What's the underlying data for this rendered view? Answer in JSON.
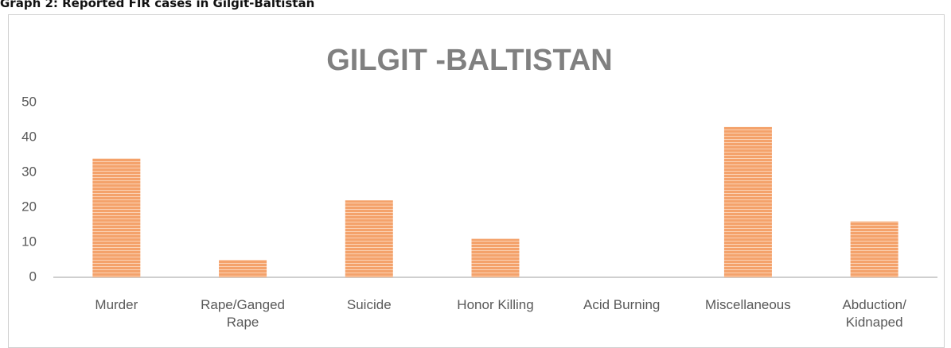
{
  "heading": "Graph 2: Reported FIR cases in Gilgit-Baltistan",
  "chart_data": {
    "type": "bar",
    "title": "GILGIT -BALTISTAN",
    "categories": [
      "Murder",
      "Rape/Ganged Rape",
      "Suicide",
      "Honor Killing",
      "Acid Burning",
      "Miscellaneous",
      "Abduction/ Kidnaped"
    ],
    "values": [
      34,
      5,
      22,
      11,
      0,
      43,
      16
    ],
    "color": "#f4a26b",
    "ylim": [
      0,
      50
    ],
    "yticks": [
      0,
      10,
      20,
      30,
      40,
      50
    ],
    "grid": false
  }
}
